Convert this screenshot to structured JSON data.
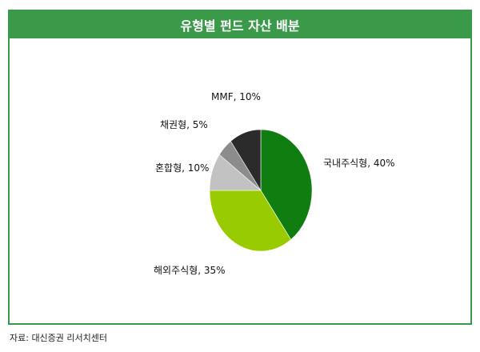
{
  "title": "유형별 펀드 자산 배분",
  "source": "자료: 대신증권 리서치센터",
  "chart_data": {
    "type": "pie",
    "title": "유형별 펀드 자산 배분",
    "slices": [
      {
        "label": "국내주식형, 40%",
        "value": 40,
        "color": "#0f7d0f"
      },
      {
        "label": "해외주식형, 35%",
        "value": 35,
        "color": "#99cc00"
      },
      {
        "label": "혼합형, 10%",
        "value": 10,
        "color": "#c2c2c2"
      },
      {
        "label": "채권형, 5%",
        "value": 5,
        "color": "#8c8c8c"
      },
      {
        "label": "MMF, 10%",
        "value": 10,
        "color": "#2b2b2b"
      }
    ],
    "start": "12 o'clock",
    "direction": "clockwise"
  }
}
